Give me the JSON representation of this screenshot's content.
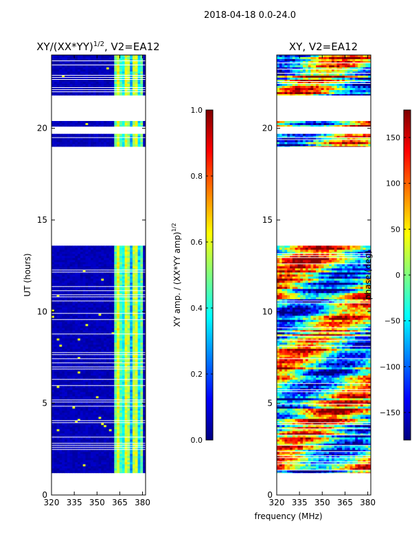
{
  "figure": {
    "suptitle": "2018-04-18 0.0-24.0",
    "xlabel": "frequency (MHz)"
  },
  "colors": {
    "jet": [
      "#00007f",
      "#0000ff",
      "#007fff",
      "#00ffff",
      "#7fff7f",
      "#ffff00",
      "#ff7f00",
      "#ff0000",
      "#7f0000"
    ],
    "background": "#ffffff",
    "gap_line": "#ffffff"
  },
  "chart_data": [
    {
      "type": "heatmap",
      "title": "XY/(XX*YY)",
      "title_sup": "1/2",
      "title_suffix": ", V2=EA12",
      "xlabel": "",
      "ylabel": "UT (hours)",
      "xlim": [
        320,
        382
      ],
      "ylim": [
        0,
        24
      ],
      "xticks": [
        320,
        335,
        350,
        365,
        380
      ],
      "yticks": [
        0,
        5,
        10,
        15,
        20
      ],
      "data_rows_ut": [
        [
          1.2,
          13.6
        ],
        [
          19.0,
          19.7
        ],
        [
          20.1,
          20.4
        ],
        [
          21.8,
          24.0
        ]
      ],
      "colorbar": {
        "label": "XY amp. / (XX*YY amp)",
        "label_sup": "1/2",
        "range": [
          0.0,
          1.0
        ],
        "ticks": [
          "0.0",
          "0.2",
          "0.4",
          "0.6",
          "0.8",
          "1.0"
        ]
      }
    },
    {
      "type": "heatmap",
      "title": "XY, V2=EA12",
      "xlabel": "",
      "ylabel": "",
      "xlim": [
        320,
        382
      ],
      "ylim": [
        0,
        24
      ],
      "xticks": [
        320,
        335,
        350,
        365,
        380
      ],
      "yticks": [
        0,
        5,
        10,
        15,
        20
      ],
      "data_rows_ut": [
        [
          1.2,
          13.6
        ],
        [
          19.0,
          19.7
        ],
        [
          20.1,
          20.4
        ],
        [
          21.8,
          24.0
        ]
      ],
      "colorbar": {
        "label": "phase (deg)",
        "range": [
          -180,
          180
        ],
        "ticks": [
          "150",
          "100",
          "50",
          "0",
          "−50",
          "−100",
          "−150"
        ],
        "tick_values": [
          150,
          100,
          50,
          0,
          -50,
          -100,
          -150
        ]
      }
    }
  ]
}
